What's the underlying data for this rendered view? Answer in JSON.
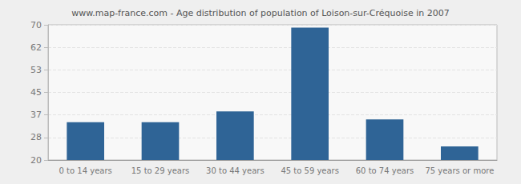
{
  "chart_data": {
    "type": "bar",
    "title": "www.map-france.com - Age distribution of population of Loison-sur-Créquoise in 2007",
    "categories": [
      "0 to 14 years",
      "15 to 29 years",
      "30 to 44 years",
      "45 to 59 years",
      "60 to 74 years",
      "75 years or more"
    ],
    "values": [
      34,
      34,
      38,
      69,
      35,
      25
    ],
    "color": "#2f6496",
    "ylim": [
      20,
      70
    ],
    "yticks": [
      20,
      {
        "value": 28.333,
        "label": "28"
      },
      {
        "value": 36.667,
        "label": "37"
      },
      45,
      {
        "value": 53.333,
        "label": "53"
      },
      {
        "value": 61.667,
        "label": "62"
      },
      70
    ],
    "grid": true
  }
}
